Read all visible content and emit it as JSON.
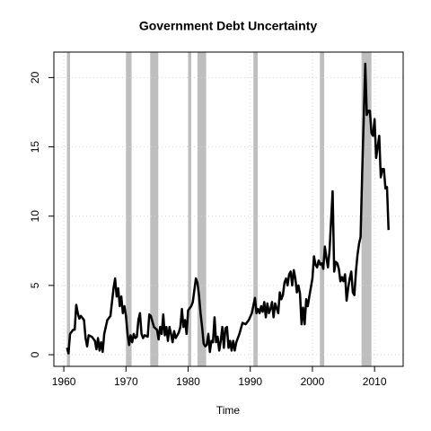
{
  "chart_data": {
    "type": "line",
    "title": "Government Debt Uncertainty",
    "xlabel": "Time",
    "xlim": [
      1958.4,
      2014.6
    ],
    "ylim": [
      -0.84,
      21.84
    ],
    "xticks": [
      1960,
      1970,
      1980,
      1990,
      2000,
      2010
    ],
    "yticks": [
      0,
      5,
      10,
      15,
      20
    ],
    "grid": true,
    "shaded_color": "#bebebe",
    "shaded_periods": [
      [
        1960.5,
        1961.0
      ],
      [
        1970.0,
        1970.9
      ],
      [
        1973.9,
        1975.2
      ],
      [
        1980.0,
        1980.5
      ],
      [
        1981.5,
        1982.9
      ],
      [
        1990.5,
        1991.2
      ],
      [
        2001.2,
        2001.9
      ],
      [
        2007.9,
        2009.5
      ]
    ],
    "series": [
      {
        "color": "#000000",
        "x": [
          1960.5,
          1960.75,
          1961,
          1961.5,
          1961.75,
          1962,
          1962.25,
          1962.5,
          1962.75,
          1963.25,
          1963.5,
          1963.75,
          1964,
          1964.5,
          1965,
          1965.25,
          1965.5,
          1965.75,
          1966,
          1966.25,
          1966.5,
          1967,
          1967.5,
          1968,
          1968.25,
          1968.5,
          1968.75,
          1969,
          1969.25,
          1969.5,
          1969.75,
          1970,
          1970.25,
          1970.5,
          1970.75,
          1971,
          1971.25,
          1971.5,
          1971.75,
          1972,
          1972.25,
          1972.5,
          1972.75,
          1973,
          1973.5,
          1973.75,
          1974,
          1974.5,
          1975,
          1975.25,
          1975.5,
          1975.75,
          1976,
          1976.25,
          1976.5,
          1976.75,
          1977,
          1977.25,
          1977.5,
          1977.75,
          1978,
          1978.5,
          1978.75,
          1979,
          1979.25,
          1979.5,
          1979.75,
          1980,
          1980.5,
          1980.75,
          1981.25,
          1981.5,
          1981.75,
          1982,
          1982.25,
          1982.5,
          1982.75,
          1983,
          1983.25,
          1983.5,
          1983.75,
          1984,
          1984.25,
          1984.5,
          1984.75,
          1985,
          1985.25,
          1985.5,
          1985.75,
          1986,
          1986.25,
          1986.5,
          1986.75,
          1987,
          1987.25,
          1987.5,
          1987.75,
          1988.25,
          1988.75,
          1989.25,
          1989.75,
          1990.25,
          1990.75,
          1991,
          1991.25,
          1991.5,
          1991.75,
          1992,
          1992.25,
          1992.5,
          1992.75,
          1993,
          1993.25,
          1993.5,
          1993.75,
          1994,
          1994.5,
          1994.75,
          1995,
          1995.25,
          1995.5,
          1995.75,
          1996,
          1996.25,
          1996.5,
          1996.75,
          1997,
          1997.25,
          1997.5,
          1997.75,
          1998,
          1998.25,
          1998.5,
          1998.75,
          1999,
          1999.25,
          1999.5,
          2000,
          2000.25,
          2000.5,
          2000.75,
          2001,
          2001.25,
          2001.5,
          2001.75,
          2002,
          2002.25,
          2002.5,
          2002.75,
          2003.25,
          2003.5,
          2003.75,
          2004,
          2004.25,
          2004.5,
          2004.75,
          2005,
          2005.25,
          2005.5,
          2005.75,
          2006,
          2006.25,
          2006.5,
          2006.75,
          2007,
          2007.25,
          2007.5,
          2007.75,
          2008,
          2008.25,
          2008.5,
          2008.75,
          2009,
          2009.25,
          2009.5,
          2009.75,
          2010,
          2010.25,
          2010.5,
          2010.75,
          2011,
          2011.25,
          2011.5,
          2011.75,
          2012,
          2012.25
        ],
        "values": [
          0.5,
          0.1,
          1.5,
          1.8,
          1.8,
          3.6,
          3.0,
          2.6,
          2.8,
          2.5,
          1.2,
          0.6,
          1.4,
          1.3,
          1.0,
          0.4,
          1.2,
          0.3,
          0.9,
          0.2,
          1.5,
          2.5,
          2.8,
          4.8,
          5.5,
          4.2,
          4.8,
          3.5,
          4.2,
          3.0,
          3.5,
          2.8,
          1.5,
          0.7,
          1.4,
          0.9,
          1.5,
          1.2,
          1.3,
          2.5,
          3.0,
          1.5,
          1.2,
          1.4,
          1.3,
          2.9,
          2.8,
          2.0,
          1.8,
          1.1,
          2.0,
          1.5,
          2.9,
          1.4,
          2.0,
          1.0,
          2.0,
          1.5,
          0.9,
          1.7,
          1.2,
          1.6,
          2.0,
          3.3,
          2.0,
          2.5,
          1.5,
          3.2,
          3.5,
          3.8,
          5.5,
          5.2,
          4.3,
          3.0,
          2.0,
          0.8,
          0.6,
          0.7,
          1.5,
          0.2,
          1.0,
          0.9,
          2.7,
          0.9,
          1.3,
          0.3,
          1.0,
          2.0,
          0.5,
          1.9,
          2.0,
          0.5,
          1.0,
          0.3,
          1.0,
          0.3,
          0.9,
          1.5,
          2.3,
          2.2,
          2.5,
          3.0,
          4.1,
          3.0,
          3.3,
          3.0,
          3.5,
          3.1,
          3.8,
          2.7,
          3.7,
          3.0,
          3.3,
          3.8,
          2.7,
          3.7,
          3.0,
          4.5,
          4.0,
          4.3,
          5.2,
          5.5,
          5.0,
          5.8,
          6.0,
          5.0,
          6.1,
          5.5,
          4.5,
          5.0,
          4.4,
          2.2,
          3.4,
          2.2,
          4.0,
          3.5,
          4.2,
          5.5,
          7.1,
          6.5,
          6.3,
          6.8,
          6.5,
          6.6,
          6.2,
          7.8,
          7.0,
          6.3,
          7.5,
          11.8,
          6.0,
          6.7,
          6.6,
          6.2,
          5.3,
          5.6,
          5.3,
          5.8,
          3.9,
          4.8,
          5.5,
          6.0,
          4.5,
          4.3,
          6.0,
          7.2,
          8.0,
          8.5,
          13.0,
          17.0,
          21.0,
          17.3,
          17.6,
          17.6,
          16.0,
          15.8,
          17.0,
          14.2,
          15.0,
          15.8,
          12.8,
          13.4,
          13.4,
          12.0,
          12.1,
          9.0
        ]
      }
    ]
  }
}
